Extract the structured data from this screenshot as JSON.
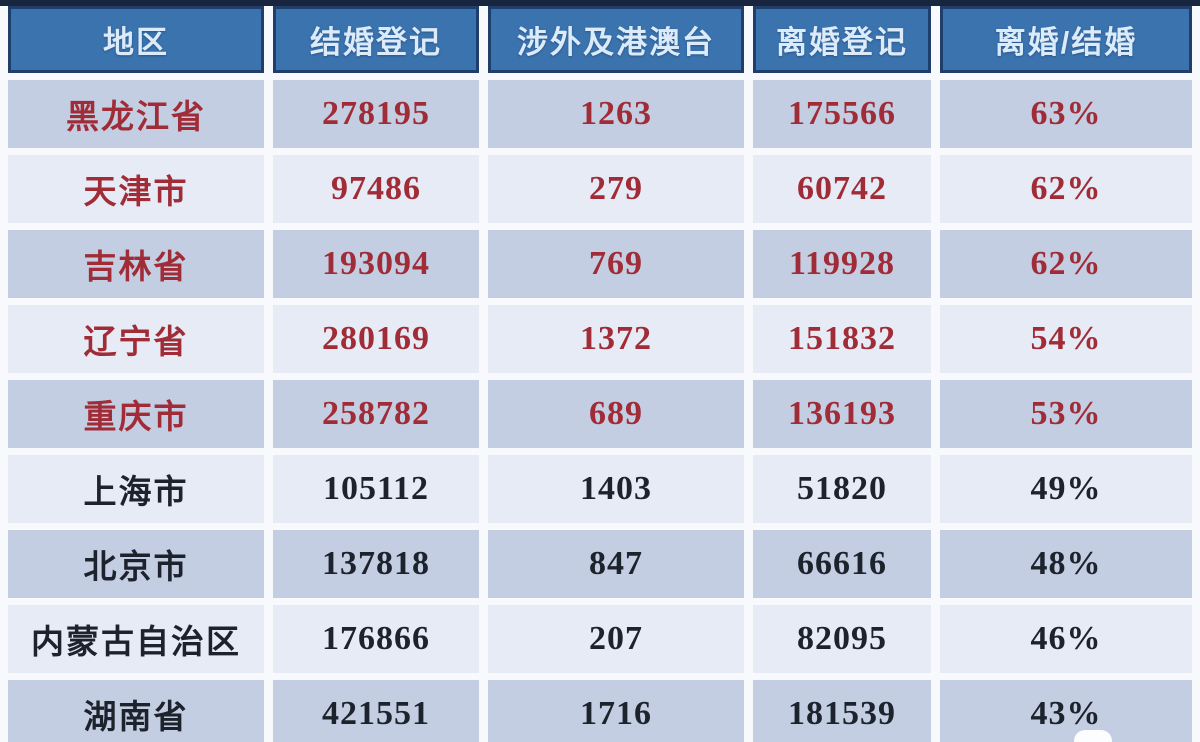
{
  "chart_data": {
    "type": "table",
    "description": "Marriage and divorce registration statistics by Chinese region with divorce/marriage ratio",
    "columns": [
      "地区",
      "结婚登记",
      "涉外及港澳台",
      "离婚登记",
      "离婚/结婚"
    ],
    "rows": [
      {
        "region": "黑龙江省",
        "marriage_reg": "278195",
        "foreign_hmt": "1263",
        "divorce_reg": "175566",
        "ratio": "63%"
      },
      {
        "region": "天津市",
        "marriage_reg": "97486",
        "foreign_hmt": "279",
        "divorce_reg": "60742",
        "ratio": "62%"
      },
      {
        "region": "吉林省",
        "marriage_reg": "193094",
        "foreign_hmt": "769",
        "divorce_reg": "119928",
        "ratio": "62%"
      },
      {
        "region": "辽宁省",
        "marriage_reg": "280169",
        "foreign_hmt": "1372",
        "divorce_reg": "151832",
        "ratio": "54%"
      },
      {
        "region": "重庆市",
        "marriage_reg": "258782",
        "foreign_hmt": "689",
        "divorce_reg": "136193",
        "ratio": "53%"
      },
      {
        "region": "上海市",
        "marriage_reg": "105112",
        "foreign_hmt": "1403",
        "divorce_reg": "51820",
        "ratio": "49%"
      },
      {
        "region": "北京市",
        "marriage_reg": "137818",
        "foreign_hmt": "847",
        "divorce_reg": "66616",
        "ratio": "48%"
      },
      {
        "region": "内蒙古自治区",
        "marriage_reg": "176866",
        "foreign_hmt": "207",
        "divorce_reg": "82095",
        "ratio": "46%"
      },
      {
        "region": "湖南省",
        "marriage_reg": "421551",
        "foreign_hmt": "1716",
        "divorce_reg": "181539",
        "ratio": "43%"
      }
    ],
    "layout_hints": {
      "red_text_row_indices": [
        0,
        1,
        2,
        3,
        4
      ],
      "black_text_row_indices": [
        5,
        6,
        7,
        8
      ],
      "last_row_clipped_at_bottom": true
    },
    "colors": {
      "header_bg": "#3b73af",
      "header_border": "#1f3f6a",
      "header_text": "#dcebfa",
      "row_dark_bg": "#c3cee3",
      "row_light_bg": "#e6ebf5",
      "red_text": "#a02c37",
      "black_text": "#1d232c",
      "top_bar": "#17263e",
      "gap_bg": "#f7f9fd"
    }
  }
}
